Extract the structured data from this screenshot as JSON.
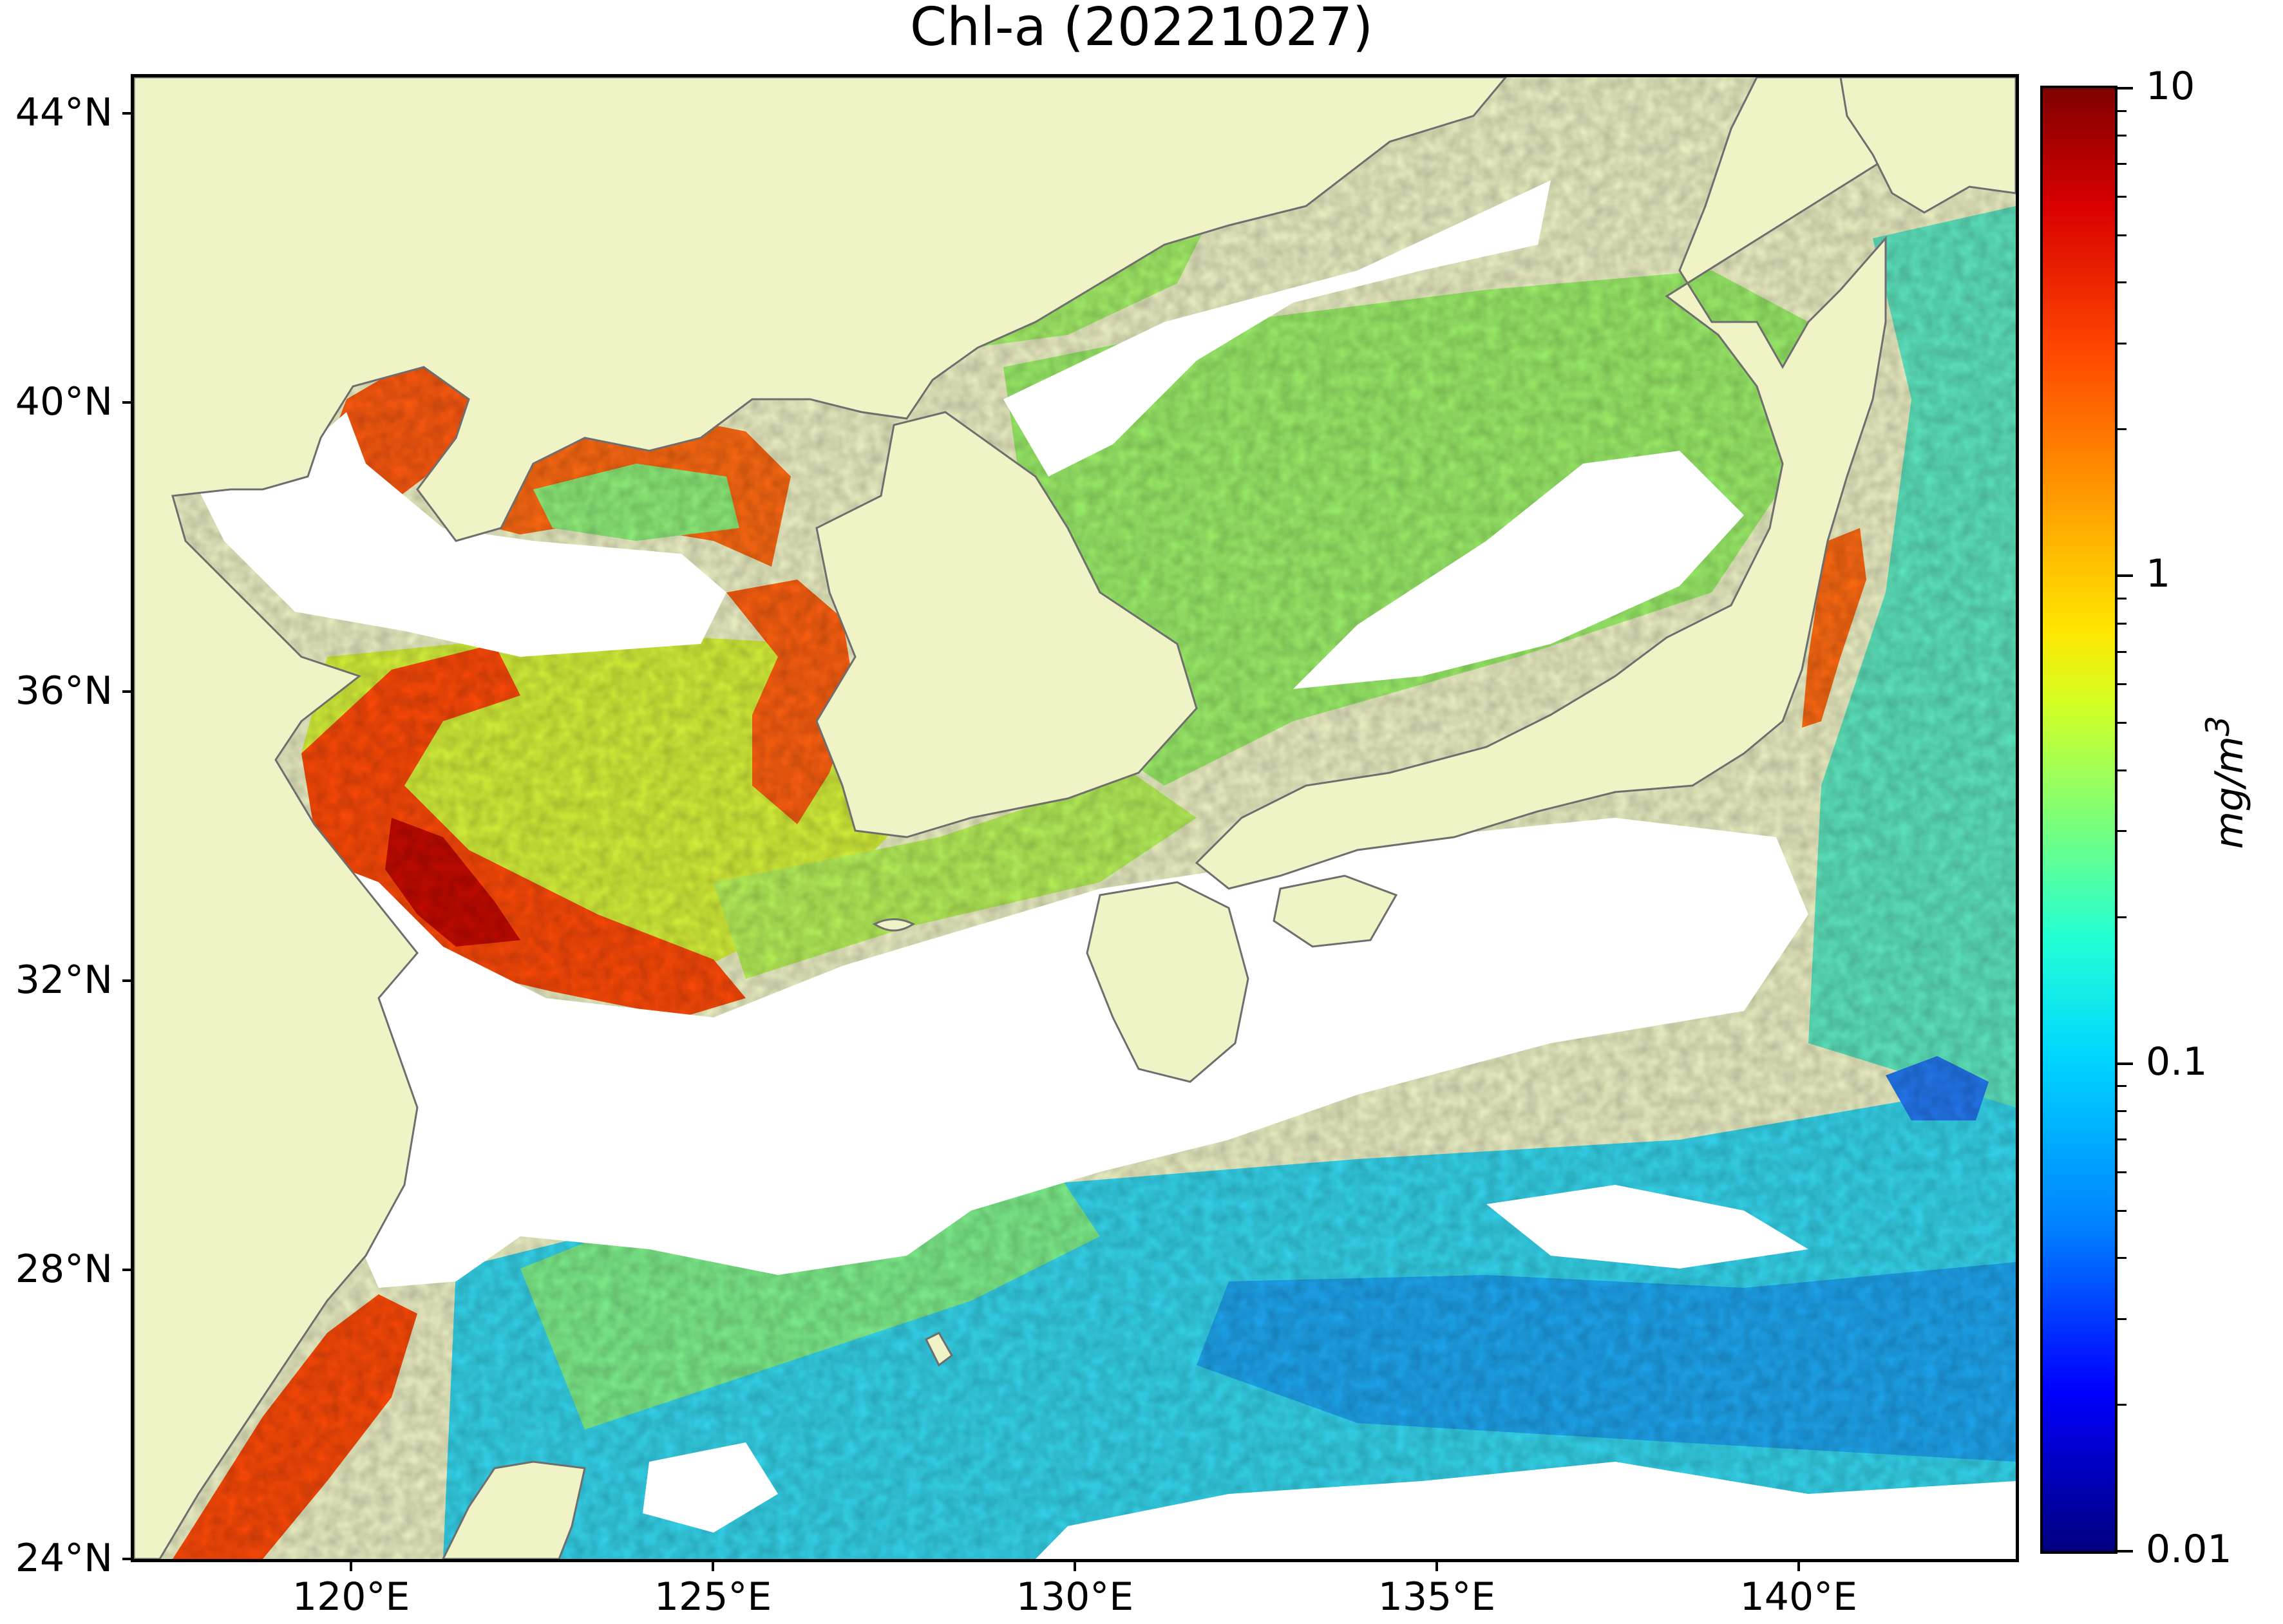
{
  "title": "Chl-a (20221027)",
  "map": {
    "lon_range": [
      117,
      143
    ],
    "lat_range": [
      24,
      44.5
    ],
    "land_color": "#eff3c6",
    "nodata_color": "#ffffff",
    "coastline_color": "#6e6e6e",
    "lat_ticks": [
      {
        "value": 44,
        "label": "44°N"
      },
      {
        "value": 40,
        "label": "40°N"
      },
      {
        "value": 36,
        "label": "36°N"
      },
      {
        "value": 32,
        "label": "32°N"
      },
      {
        "value": 28,
        "label": "28°N"
      },
      {
        "value": 24,
        "label": "24°N"
      }
    ],
    "lon_ticks": [
      {
        "value": 120,
        "label": "120°E"
      },
      {
        "value": 125,
        "label": "125°E"
      },
      {
        "value": 130,
        "label": "130°E"
      },
      {
        "value": 135,
        "label": "135°E"
      },
      {
        "value": 140,
        "label": "140°E"
      }
    ]
  },
  "colorbar": {
    "unit": "mg/m",
    "unit_exp": "3",
    "scale": "log",
    "range": [
      0.01,
      10
    ],
    "colormap": "jet",
    "major_ticks": [
      {
        "value": 10,
        "label": "10"
      },
      {
        "value": 1,
        "label": "1"
      },
      {
        "value": 0.1,
        "label": "0.1"
      },
      {
        "value": 0.01,
        "label": "0.01"
      }
    ]
  }
}
